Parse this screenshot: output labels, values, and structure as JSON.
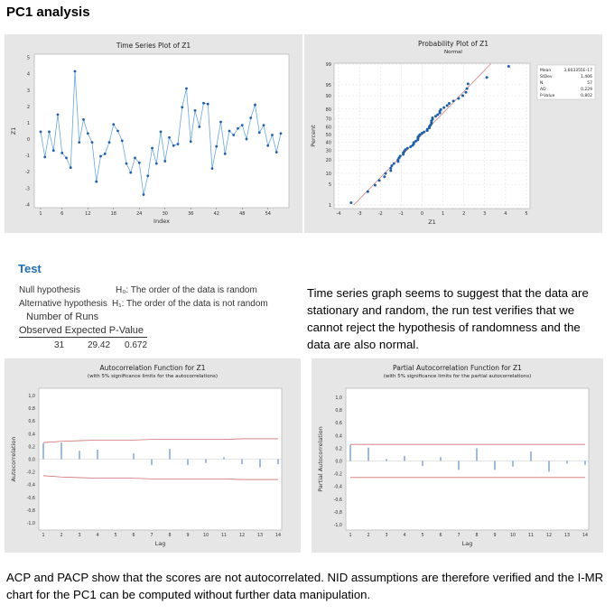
{
  "title": "PC1 analysis",
  "test": {
    "heading": "Test",
    "null_label": "Null hypothesis",
    "null_text": "H₀: The order of the data is random",
    "alt_label": "Alternative hypothesis",
    "alt_text": "H₁: The order of the data is not random",
    "runs_header": "Number of Runs",
    "columns": [
      "Observed",
      "Expected",
      "P-Value"
    ],
    "values": [
      "31",
      "29.42",
      "0.672"
    ]
  },
  "paragraph1": "Time series graph seems to suggest that the data are stationary and random, the run test verifies that we cannot reject the hypothesis of randomness and the data are also normal.",
  "paragraph2": "ACP and PACP show that the scores are not autocorrelated. NID assumptions are therefore verified and the I-MR chart for the PC1 can be computed without further data manipulation.",
  "chart_data": [
    {
      "type": "line",
      "title": "Time Series Plot of Z1",
      "xlabel": "Index",
      "ylabel": "Z1",
      "xticks": [
        1,
        6,
        12,
        18,
        24,
        30,
        36,
        42,
        48,
        54
      ],
      "yticks": [
        -4,
        -3,
        -2,
        -1,
        0,
        1,
        2,
        3,
        4,
        5
      ],
      "ylim": [
        -4.2,
        5.2
      ],
      "color": "#1f5fa8",
      "line_color": "#6aa6d8",
      "x": [
        1,
        2,
        3,
        4,
        5,
        6,
        7,
        8,
        9,
        10,
        11,
        12,
        13,
        14,
        15,
        16,
        17,
        18,
        19,
        20,
        21,
        22,
        23,
        24,
        25,
        26,
        27,
        28,
        29,
        30,
        31,
        32,
        33,
        34,
        35,
        36,
        37,
        38,
        39,
        40,
        41,
        42,
        43,
        44,
        45,
        46,
        47,
        48,
        49,
        50,
        51,
        52,
        53,
        54,
        55,
        56,
        57
      ],
      "y": [
        0.45,
        -1.1,
        0.45,
        -0.7,
        1.5,
        -0.85,
        -1.15,
        -1.75,
        4.15,
        -0.2,
        1.2,
        0.35,
        -0.2,
        -2.6,
        -1.05,
        -0.9,
        -0.2,
        0.9,
        0.5,
        -0.1,
        -1.5,
        -2.05,
        -1.15,
        -1.45,
        -3.4,
        -2.25,
        -0.55,
        -1.5,
        0.45,
        -1.35,
        0.1,
        -0.4,
        -0.3,
        1.95,
        3.1,
        -0.15,
        1.75,
        0.75,
        2.2,
        2.15,
        -1.8,
        -0.45,
        1.05,
        -0.9,
        0.5,
        0.25,
        0.65,
        0.85,
        0.0,
        1.3,
        2.1,
        0.4,
        0.85,
        -0.4,
        0.25,
        -0.8,
        0.35
      ]
    },
    {
      "type": "scatter",
      "title": "Probability Plot of Z1",
      "subtitle": "Normal",
      "xlabel": "Z1",
      "ylabel": "Percent",
      "xticks": [
        -4,
        -3,
        -2,
        -1,
        0,
        1,
        2,
        3,
        4,
        5
      ],
      "yticks": [
        1,
        5,
        10,
        20,
        30,
        40,
        50,
        60,
        70,
        80,
        90,
        95,
        99
      ],
      "xlim": [
        -4,
        5
      ],
      "ylim": [
        1,
        99
      ],
      "grid": true,
      "data_source": "Z1 values (sorted)",
      "fit_color": "#d08080",
      "stats": [
        {
          "label": "Mean",
          "value": "3,603355E-17"
        },
        {
          "label": "StDev",
          "value": "1,406"
        },
        {
          "label": "N",
          "value": "57"
        },
        {
          "label": "AD",
          "value": "0,229"
        },
        {
          "label": "P-Value",
          "value": "0.802"
        }
      ]
    },
    {
      "type": "bar",
      "title": "Autocorrelation Function for Z1",
      "subtitle": "(with 5% significance limits for the autocorrelations)",
      "xlabel": "Lag",
      "ylabel": "Autocorrelation",
      "ylim": [
        -1,
        1
      ],
      "yticks": [
        "-1,0",
        "-0,8",
        "-0,6",
        "-0,4",
        "-0,2",
        "0,0",
        "0,2",
        "0,4",
        "0,6",
        "0,8",
        "1,0"
      ],
      "lags": [
        1,
        2,
        3,
        4,
        5,
        6,
        7,
        8,
        9,
        10,
        11,
        12,
        13,
        14
      ],
      "values": [
        0.25,
        0.26,
        0.13,
        0.15,
        0.0,
        0.09,
        -0.09,
        0.16,
        -0.09,
        -0.06,
        0.03,
        -0.08,
        -0.13,
        -0.08
      ],
      "limits": [
        0.26,
        0.28,
        0.29,
        0.3,
        0.3,
        0.3,
        0.31,
        0.31,
        0.31,
        0.31,
        0.31,
        0.32,
        0.32,
        0.32
      ]
    },
    {
      "type": "bar",
      "title": "Partial Autocorrelation Function for Z1",
      "subtitle": "(with 5% significance limits for the partial autocorrelations)",
      "xlabel": "Lag",
      "ylabel": "Partial Autocorrelation",
      "ylim": [
        -1,
        1
      ],
      "yticks": [
        "-1,0",
        "-0,8",
        "-0,6",
        "-0,4",
        "-0,2",
        "0,0",
        "0,2",
        "0,4",
        "0,6",
        "0,8",
        "1,0"
      ],
      "lags": [
        1,
        2,
        3,
        4,
        5,
        6,
        7,
        8,
        9,
        10,
        11,
        12,
        13,
        14
      ],
      "values": [
        0.25,
        0.21,
        0.03,
        0.08,
        -0.08,
        0.06,
        -0.14,
        0.2,
        -0.14,
        -0.09,
        0.15,
        -0.17,
        -0.04,
        -0.06
      ],
      "limits": [
        0.26,
        0.26,
        0.26,
        0.26,
        0.26,
        0.26,
        0.26,
        0.26,
        0.26,
        0.26,
        0.26,
        0.26,
        0.26,
        0.26
      ]
    }
  ]
}
